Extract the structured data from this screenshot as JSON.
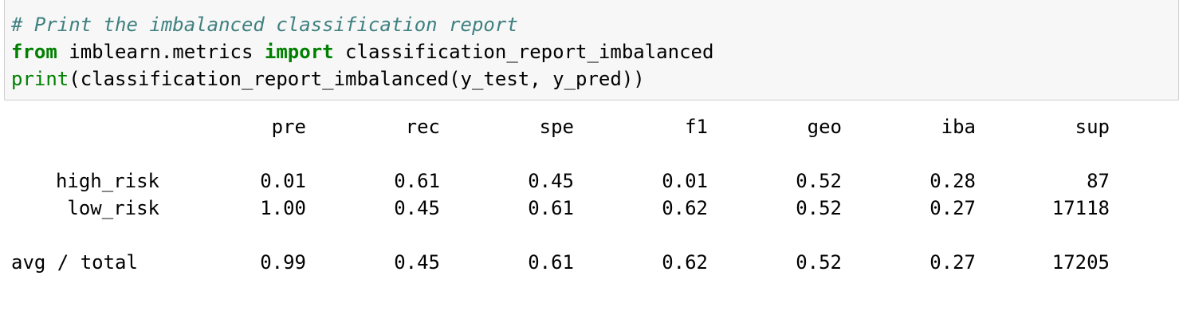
{
  "code": {
    "line1": "# Print the imbalanced classification report",
    "line2_kw1": "from",
    "line2_mod": " imblearn.metrics ",
    "line2_kw2": "import",
    "line2_rest": " classification_report_imbalanced",
    "line3_builtin": "print",
    "line3_rest": "(classification_report_imbalanced(y_test, y_pred))"
  },
  "report": {
    "headers": [
      "pre",
      "rec",
      "spe",
      "f1",
      "geo",
      "iba",
      "sup"
    ],
    "rows": [
      {
        "label": "high_risk",
        "values": [
          "0.01",
          "0.61",
          "0.45",
          "0.01",
          "0.52",
          "0.28",
          "87"
        ]
      },
      {
        "label": "low_risk",
        "values": [
          "1.00",
          "0.45",
          "0.61",
          "0.62",
          "0.52",
          "0.27",
          "17118"
        ]
      }
    ],
    "total": {
      "label": "avg / total",
      "values": [
        "0.99",
        "0.45",
        "0.61",
        "0.62",
        "0.52",
        "0.27",
        "17205"
      ]
    }
  }
}
